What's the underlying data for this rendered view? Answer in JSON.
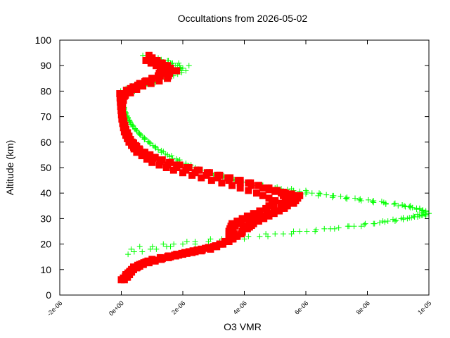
{
  "chart_data": {
    "type": "scatter",
    "title": "Occultations from 2026-05-02",
    "xlabel": "O3 VMR",
    "ylabel": "Altitude (km)",
    "xlim": [
      -2e-06,
      1e-05
    ],
    "ylim": [
      0,
      100
    ],
    "x_ticks": [
      "-2e-06",
      "0e+00",
      "2e-06",
      "4e-06",
      "6e-06",
      "8e-06",
      "1e-05"
    ],
    "y_ticks": [
      "0",
      "10",
      "20",
      "30",
      "40",
      "50",
      "60",
      "70",
      "80",
      "90",
      "100"
    ],
    "grid": false,
    "series": [
      {
        "marker": "plus",
        "color": "#00ff00",
        "profiles": [
          [
            [
              4.2e-07,
              17
            ],
            [
              2e-06,
              20
            ],
            [
              4.5e-06,
              23
            ],
            [
              6.8e-06,
              26
            ],
            [
              8.5e-06,
              29
            ],
            [
              9.5e-06,
              31
            ],
            [
              9.9e-06,
              33
            ],
            [
              9.6e-06,
              34
            ],
            [
              8.9e-06,
              36
            ],
            [
              7.6e-06,
              38
            ],
            [
              6.2e-06,
              40
            ],
            [
              5e-06,
              42
            ],
            [
              3.8e-06,
              45
            ],
            [
              2.4e-06,
              50
            ],
            [
              1.5e-06,
              55
            ],
            [
              9e-07,
              60
            ],
            [
              4.5e-07,
              65
            ],
            [
              1.8e-07,
              70
            ],
            [
              6e-08,
              75
            ],
            [
              1e-07,
              78
            ],
            [
              6e-07,
              81
            ],
            [
              1.2e-06,
              85
            ],
            [
              2e-06,
              89
            ],
            [
              1.5e-06,
              92
            ],
            [
              9e-07,
              93
            ]
          ],
          [
            [
              2.2e-07,
              16
            ],
            [
              1.6e-06,
              19
            ],
            [
              4e-06,
              22
            ],
            [
              6.3e-06,
              25
            ],
            [
              8.2e-06,
              28
            ],
            [
              9.3e-06,
              30
            ],
            [
              1e-05,
              32
            ],
            [
              9.7e-06,
              34
            ],
            [
              9e-06,
              35
            ],
            [
              7.8e-06,
              37
            ],
            [
              6.4e-06,
              39
            ],
            [
              5.2e-06,
              41
            ],
            [
              4.1e-06,
              44
            ],
            [
              2.8e-06,
              48
            ],
            [
              1.9e-06,
              52
            ],
            [
              1.2e-06,
              57
            ],
            [
              7e-07,
              62
            ],
            [
              3.2e-07,
              67
            ],
            [
              1.2e-07,
              72
            ],
            [
              4e-08,
              77
            ],
            [
              -2e-08,
              80
            ],
            [
              5e-07,
              83
            ],
            [
              1.4e-06,
              87
            ],
            [
              2.2e-06,
              90
            ],
            [
              1.2e-06,
              93
            ]
          ],
          [
            [
              3.2e-07,
              18
            ],
            [
              2.4e-06,
              21
            ],
            [
              5e-06,
              24
            ],
            [
              7.4e-06,
              27
            ],
            [
              8.9e-06,
              29
            ],
            [
              9.7e-06,
              31
            ],
            [
              1e-05,
              32
            ],
            [
              9.4e-06,
              35
            ],
            [
              8.6e-06,
              36
            ],
            [
              7.3e-06,
              38
            ],
            [
              6e-06,
              41
            ],
            [
              4.6e-06,
              43
            ],
            [
              3.3e-06,
              46
            ],
            [
              2.1e-06,
              51
            ],
            [
              1.3e-06,
              56
            ],
            [
              7.5e-07,
              61
            ],
            [
              3.8e-07,
              66
            ],
            [
              1.4e-07,
              71
            ],
            [
              2e-08,
              76
            ],
            [
              0.0,
              79
            ],
            [
              8e-07,
              82
            ],
            [
              1.7e-06,
              86
            ],
            [
              2.1e-06,
              88
            ],
            [
              1.6e-06,
              91
            ],
            [
              7e-07,
              94
            ]
          ],
          [
            [
              6e-07,
              19
            ],
            [
              2.9e-06,
              22
            ],
            [
              5.6e-06,
              25
            ],
            [
              7.8e-06,
              27
            ],
            [
              9.1e-06,
              30
            ],
            [
              9.9e-06,
              31
            ],
            [
              9.8e-06,
              33
            ],
            [
              9.2e-06,
              35
            ],
            [
              8.2e-06,
              37
            ],
            [
              6.9e-06,
              39
            ],
            [
              5.6e-06,
              41
            ],
            [
              4.4e-06,
              43
            ],
            [
              3e-06,
              47
            ],
            [
              1.9e-06,
              53
            ],
            [
              1.1e-06,
              58
            ],
            [
              6e-07,
              63
            ],
            [
              2.8e-07,
              68
            ],
            [
              8e-08,
              73
            ],
            [
              3e-08,
              78
            ],
            [
              2e-07,
              81
            ],
            [
              1e-06,
              84
            ],
            [
              1.9e-06,
              88
            ],
            [
              1.9e-06,
              90
            ],
            [
              1.1e-06,
              92
            ],
            [
              8e-07,
              94
            ]
          ]
        ]
      },
      {
        "marker": "square",
        "color": "#ff0000",
        "profiles": [
          [
            [
              1e-07,
              6
            ],
            [
              3e-07,
              9
            ],
            [
              6e-07,
              12
            ],
            [
              1e-06,
              14
            ],
            [
              1.8e-06,
              16
            ],
            [
              2.6e-06,
              18
            ],
            [
              3.3e-06,
              20
            ],
            [
              3.7e-06,
              23
            ],
            [
              3.6e-06,
              26
            ],
            [
              3.9e-06,
              29
            ],
            [
              4.5e-06,
              32
            ],
            [
              5.2e-06,
              36
            ],
            [
              5.6e-06,
              39
            ],
            [
              4.8e-06,
              42
            ],
            [
              3.8e-06,
              45
            ],
            [
              2.8e-06,
              48
            ],
            [
              1.8e-06,
              51
            ],
            [
              1.1e-06,
              54
            ],
            [
              6e-07,
              57
            ],
            [
              3e-07,
              61
            ],
            [
              1.5e-07,
              65
            ],
            [
              5e-08,
              70
            ],
            [
              0.0,
              75
            ],
            [
              2e-07,
              80
            ],
            [
              8e-07,
              84
            ],
            [
              1.4e-06,
              87
            ],
            [
              1.5e-06,
              90
            ],
            [
              1e-06,
              93
            ]
          ],
          [
            [
              0.0,
              6
            ],
            [
              2e-07,
              8
            ],
            [
              4e-07,
              11
            ],
            [
              8e-07,
              13
            ],
            [
              1.6e-06,
              15
            ],
            [
              2.4e-06,
              17
            ],
            [
              3.1e-06,
              19
            ],
            [
              3.5e-06,
              22
            ],
            [
              3.5e-06,
              25
            ],
            [
              3.6e-06,
              28
            ],
            [
              4.1e-06,
              31
            ],
            [
              4.7e-06,
              34
            ],
            [
              5e-06,
              37
            ],
            [
              4.4e-06,
              40
            ],
            [
              3.6e-06,
              43
            ],
            [
              2.6e-06,
              46
            ],
            [
              1.7e-06,
              49
            ],
            [
              1e-06,
              52
            ],
            [
              5e-07,
              56
            ],
            [
              2.5e-07,
              60
            ],
            [
              1e-07,
              64
            ],
            [
              2e-08,
              69
            ],
            [
              -2e-08,
              74
            ],
            [
              -5e-08,
              79
            ],
            [
              6e-07,
              83
            ],
            [
              1.2e-06,
              86
            ],
            [
              1.3e-06,
              89
            ],
            [
              8e-07,
              92
            ]
          ],
          [
            [
              2e-07,
              7
            ],
            [
              4e-07,
              10
            ],
            [
              7e-07,
              12
            ],
            [
              1.3e-06,
              14
            ],
            [
              2e-06,
              16
            ],
            [
              2.9e-06,
              18
            ],
            [
              3.5e-06,
              21
            ],
            [
              3.9e-06,
              24
            ],
            [
              4e-06,
              27
            ],
            [
              4.4e-06,
              30
            ],
            [
              5e-06,
              33
            ],
            [
              5.6e-06,
              36
            ],
            [
              5.8e-06,
              39
            ],
            [
              5e-06,
              41
            ],
            [
              4.2e-06,
              44
            ],
            [
              3.2e-06,
              47
            ],
            [
              2.2e-06,
              50
            ],
            [
              1.3e-06,
              53
            ],
            [
              7e-07,
              56
            ],
            [
              3.5e-07,
              60
            ],
            [
              1.5e-07,
              63
            ],
            [
              8e-08,
              68
            ],
            [
              1e-08,
              73
            ],
            [
              1e-07,
              78
            ],
            [
              7e-07,
              82
            ],
            [
              1.5e-06,
              85
            ],
            [
              1.6e-06,
              88
            ],
            [
              1.3e-06,
              91
            ]
          ],
          [
            [
              1.5e-07,
              8
            ],
            [
              3.5e-07,
              10
            ],
            [
              9e-07,
              13
            ],
            [
              1.5e-06,
              15
            ],
            [
              2.2e-06,
              17
            ],
            [
              3e-06,
              19
            ],
            [
              3.6e-06,
              22
            ],
            [
              4.1e-06,
              26
            ],
            [
              4.3e-06,
              28
            ],
            [
              4.8e-06,
              31
            ],
            [
              5.3e-06,
              34
            ],
            [
              5.4e-06,
              37
            ],
            [
              5.2e-06,
              40
            ],
            [
              4.6e-06,
              42
            ],
            [
              3.5e-06,
              45
            ],
            [
              2.4e-06,
              48
            ],
            [
              1.5e-06,
              51
            ],
            [
              8e-07,
              55
            ],
            [
              4e-07,
              58
            ],
            [
              2e-07,
              62
            ],
            [
              7e-08,
              67
            ],
            [
              3e-08,
              72
            ],
            [
              -3e-08,
              77
            ],
            [
              3e-07,
              81
            ],
            [
              1e-06,
              85
            ],
            [
              1.8e-06,
              88
            ],
            [
              1.2e-06,
              91
            ],
            [
              9e-07,
              94
            ]
          ]
        ]
      }
    ]
  }
}
